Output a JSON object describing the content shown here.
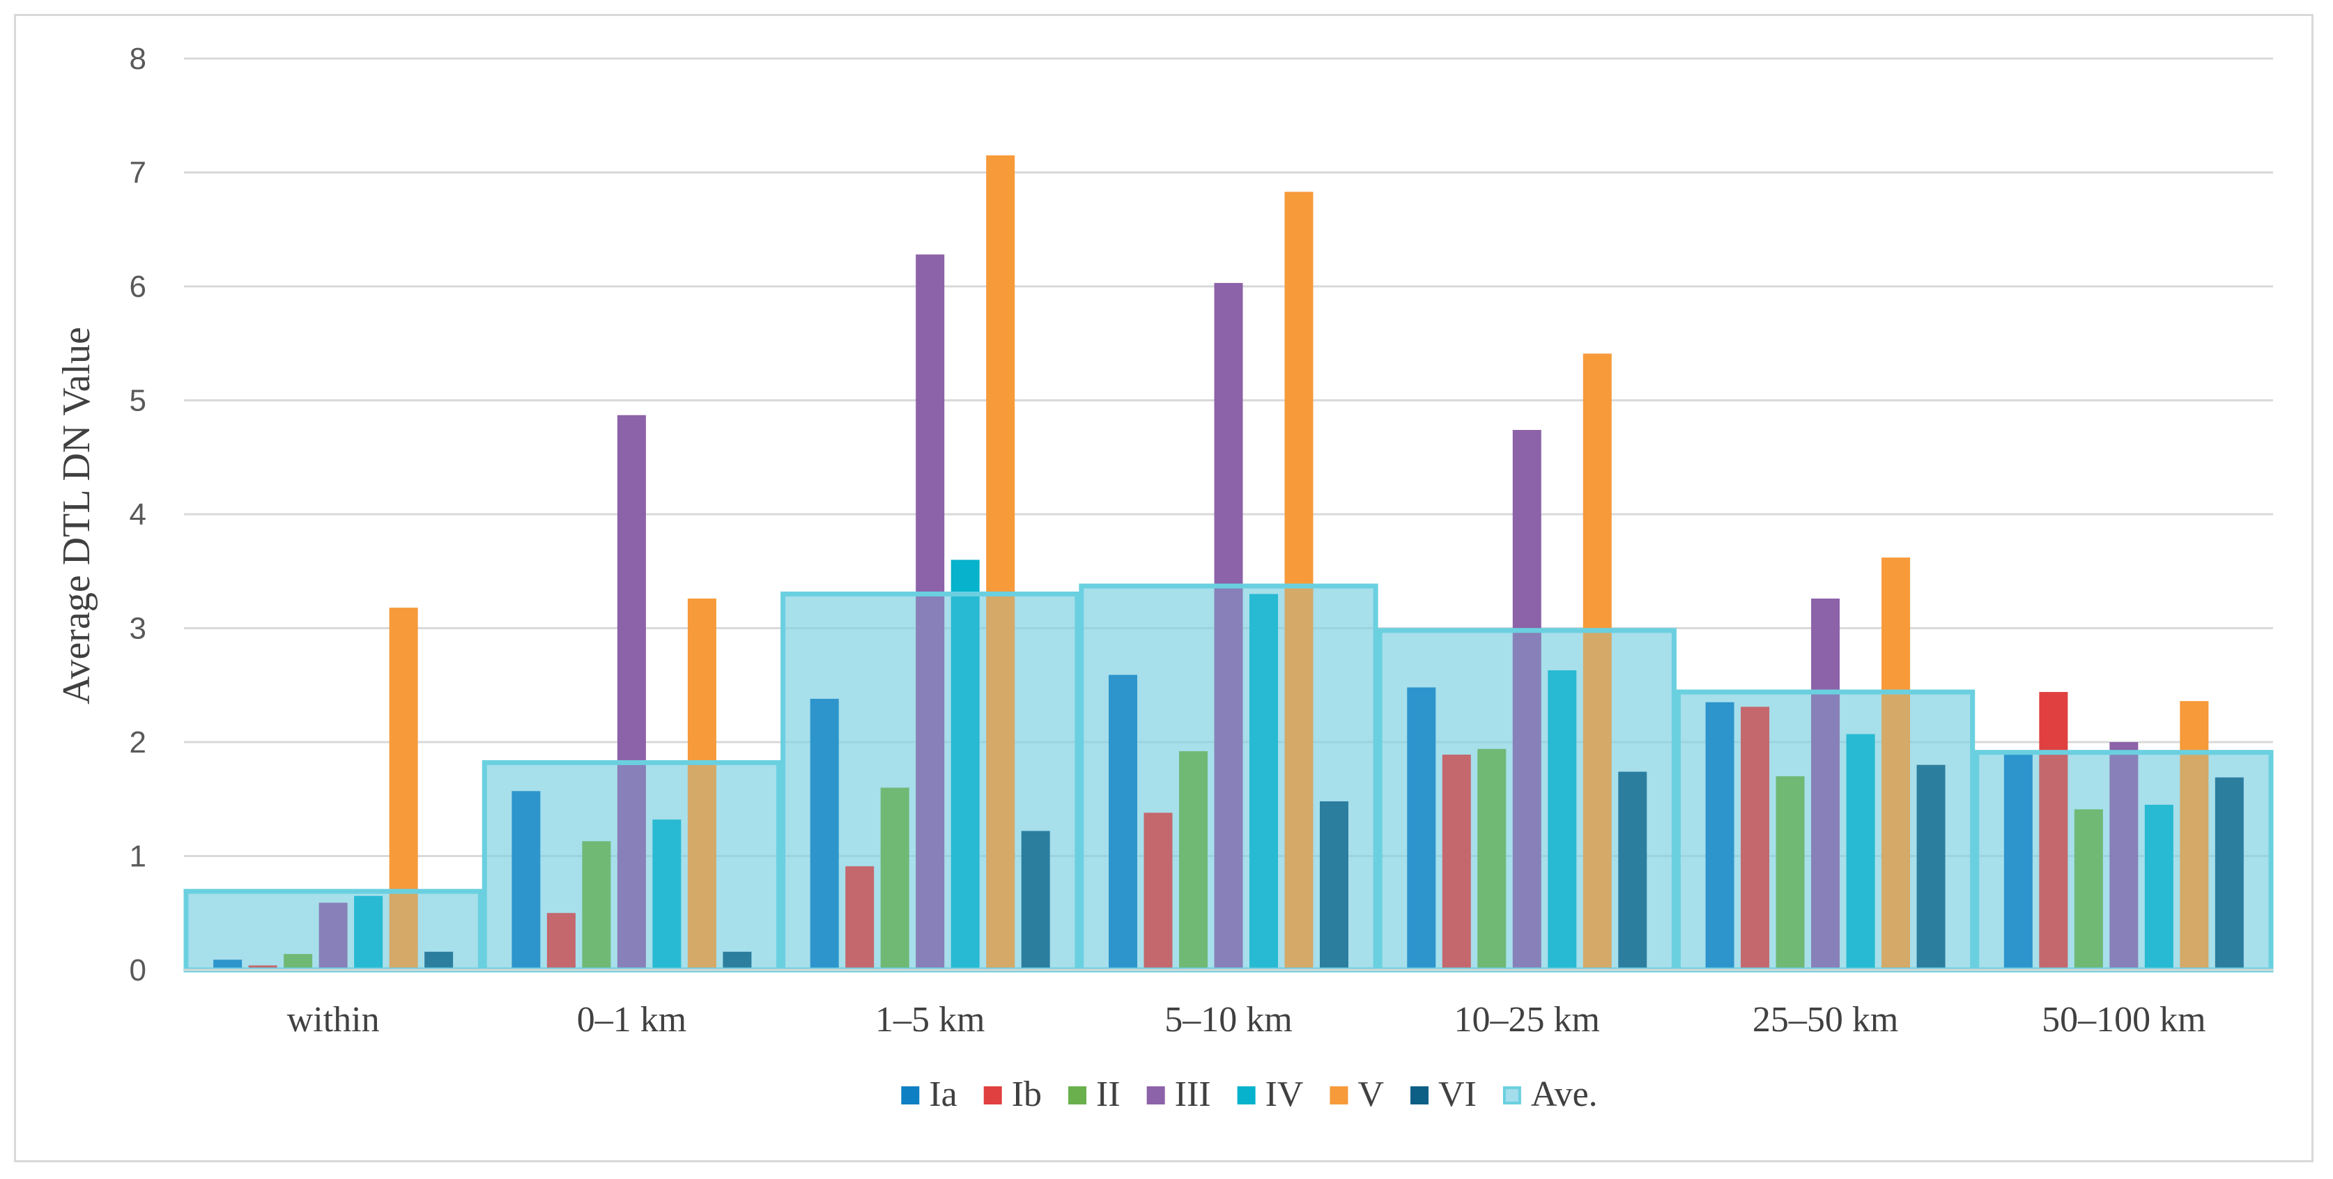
{
  "chart_data": {
    "type": "bar",
    "title": "",
    "xlabel": "",
    "ylabel": "Average DTL DN Value",
    "ylim": [
      0,
      8
    ],
    "yticks": [
      "0",
      "1",
      "2",
      "3",
      "4",
      "5",
      "6",
      "7",
      "8"
    ],
    "grid": true,
    "legend_position": "bottom",
    "categories": [
      "within",
      "0–1 km",
      "1–5 km",
      "5–10 km",
      "10–25 km",
      "25–50 km",
      "50–100 km"
    ],
    "series": [
      {
        "name": "Ia",
        "color": "#0f7fc4",
        "values": [
          0.09,
          1.57,
          2.38,
          2.59,
          2.48,
          2.35,
          1.92
        ]
      },
      {
        "name": "Ib",
        "color": "#e04040",
        "values": [
          0.04,
          0.5,
          0.91,
          1.38,
          1.89,
          2.31,
          2.44
        ]
      },
      {
        "name": "II",
        "color": "#6ab04c",
        "values": [
          0.14,
          1.13,
          1.6,
          1.92,
          1.94,
          1.7,
          1.41
        ]
      },
      {
        "name": "III",
        "color": "#8c62a8",
        "values": [
          0.59,
          4.87,
          6.28,
          6.03,
          4.74,
          3.26,
          2.0
        ]
      },
      {
        "name": "IV",
        "color": "#06b2cc",
        "values": [
          0.65,
          1.32,
          3.6,
          3.3,
          2.63,
          2.07,
          1.45
        ]
      },
      {
        "name": "V",
        "color": "#f79a3a",
        "values": [
          3.18,
          3.26,
          7.15,
          6.83,
          5.41,
          3.62,
          2.36
        ]
      },
      {
        "name": "VI",
        "color": "#0d5f86",
        "values": [
          0.16,
          0.16,
          1.22,
          1.48,
          1.74,
          1.8,
          1.69
        ]
      }
    ],
    "average": {
      "name": "Ave.",
      "fill": "#7ecfe2",
      "stroke": "#6ad0e0",
      "values": [
        0.69,
        1.82,
        3.3,
        3.37,
        2.98,
        2.44,
        1.91
      ]
    }
  }
}
